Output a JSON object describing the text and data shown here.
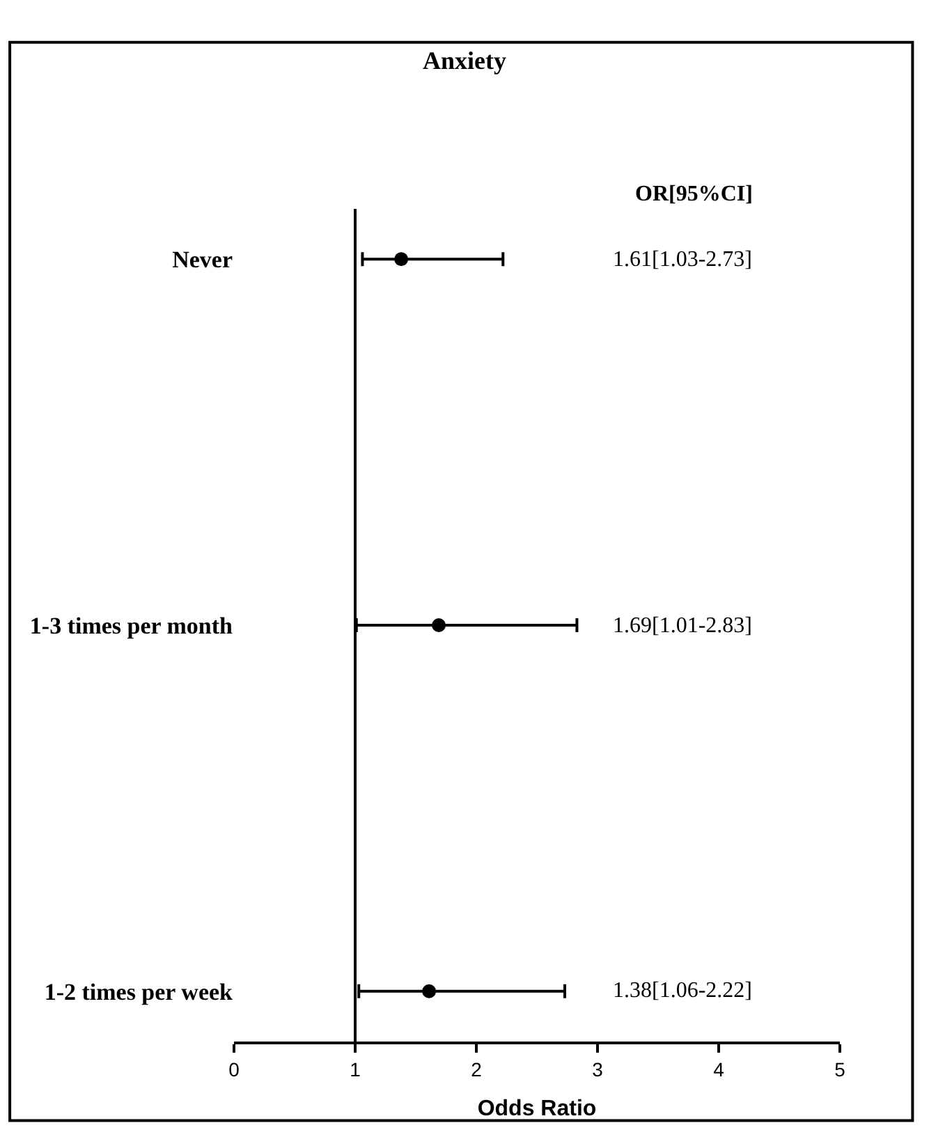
{
  "chart_data": {
    "type": "scatter",
    "title": "Anxiety",
    "xlabel": "Odds Ratio",
    "categories": [
      "Never",
      "1-3 times per month",
      "1-2 times per week"
    ],
    "values": [
      1.38,
      1.69,
      1.61
    ],
    "orientation": "horizontal",
    "errors": [
      [
        1.06,
        2.22
      ],
      [
        1.01,
        2.83
      ],
      [
        1.03,
        2.73
      ]
    ],
    "color": "#000000",
    "marker": "circle",
    "legend": false,
    "xlim": [
      0,
      5
    ],
    "xticks": [
      0,
      1,
      2,
      3,
      4,
      5
    ],
    "ref_lines": [
      {
        "axis": "x",
        "value": 1
      }
    ],
    "annotations": [
      "OR[95%CI]",
      "1.61[1.03-2.73]",
      "1.69[1.01-2.83]",
      "1.38[1.06-2.22]"
    ]
  }
}
